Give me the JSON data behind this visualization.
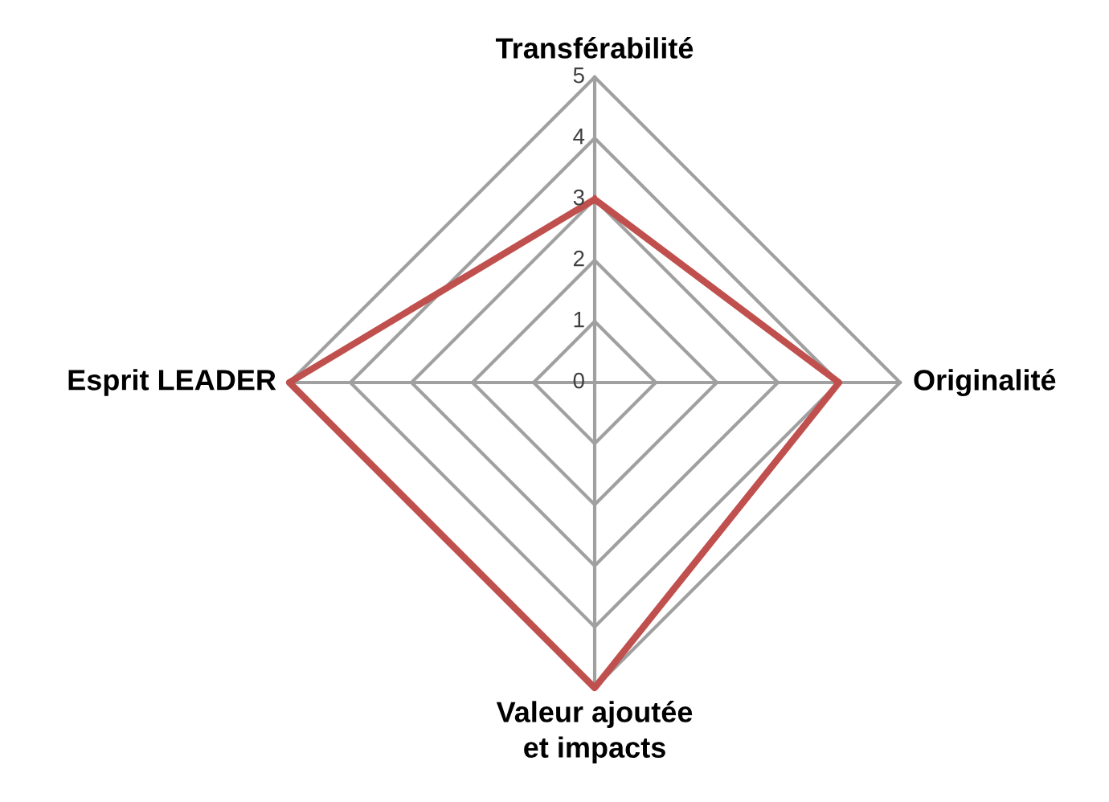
{
  "chart_data": {
    "type": "radar",
    "categories": [
      "Transférabilité",
      "Originalité",
      "Valeur ajoutée\net impacts",
      "Esprit LEADER"
    ],
    "series": [
      {
        "color": "#c0504d",
        "values": [
          3,
          4,
          5,
          5
        ]
      }
    ],
    "ylim": [
      0,
      5
    ],
    "yticks": [
      0,
      1,
      2,
      3,
      4,
      5
    ],
    "grid": true
  }
}
